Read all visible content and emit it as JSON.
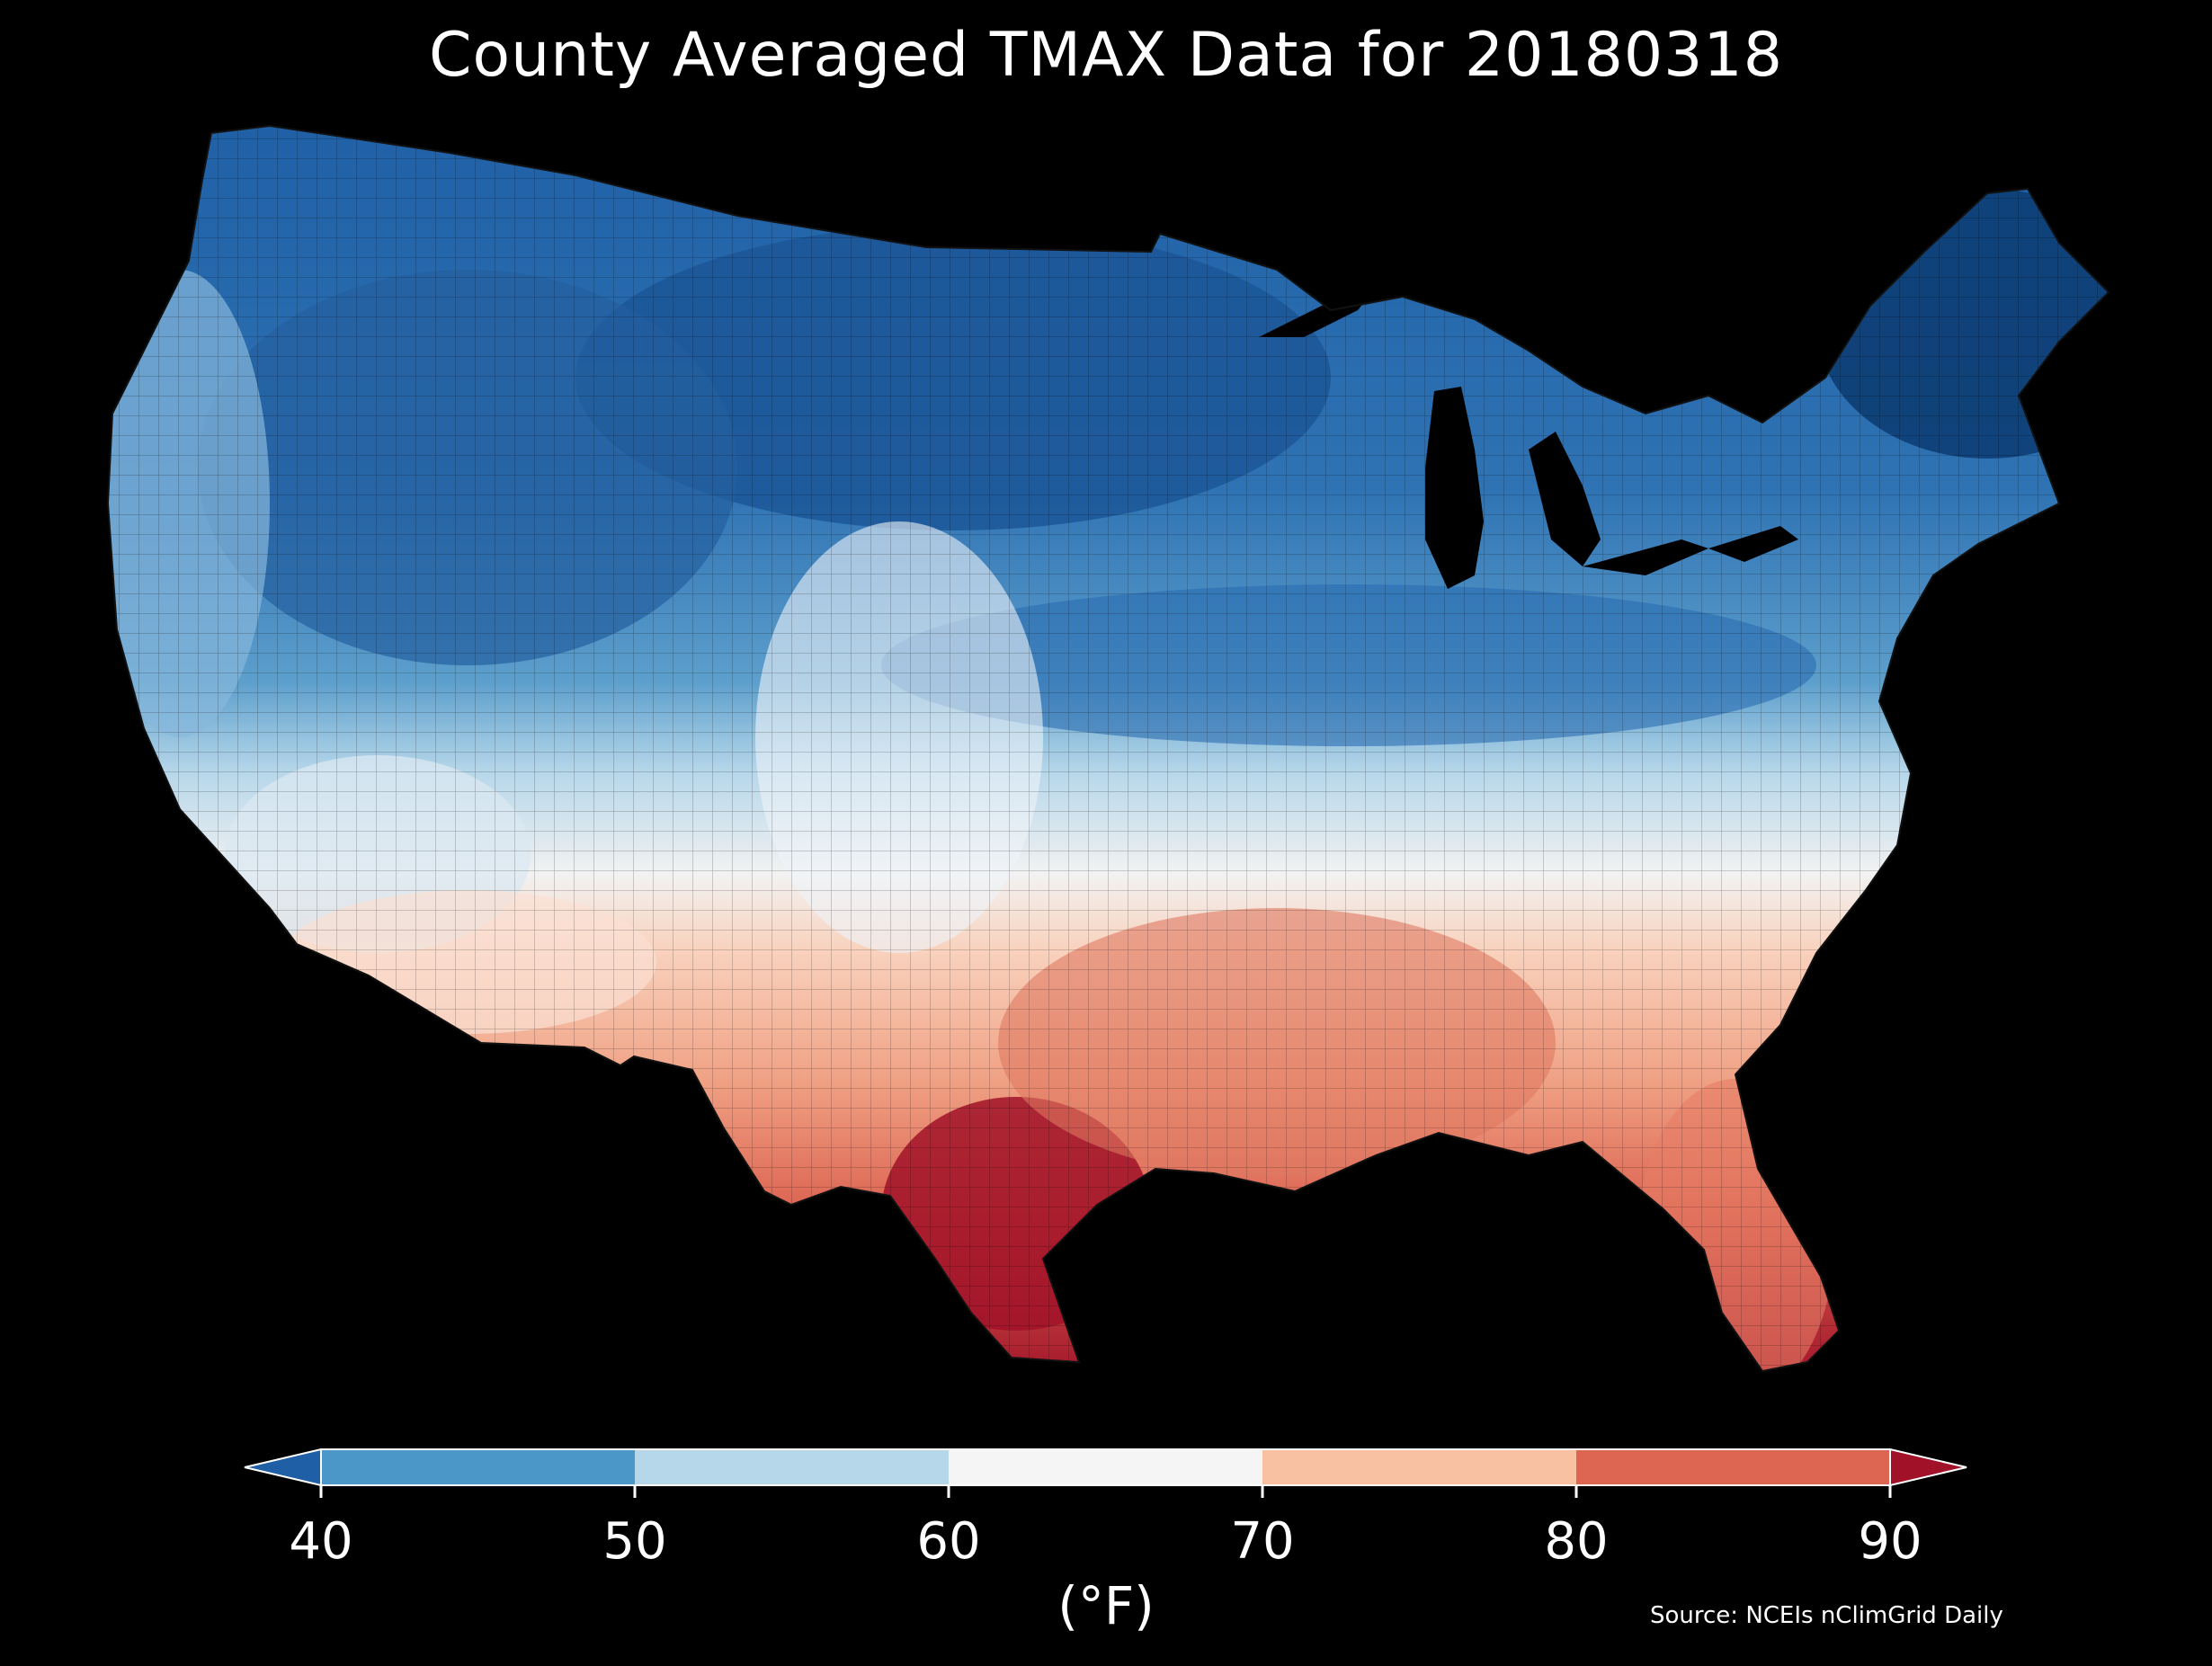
{
  "title": "County Averaged TMAX Data for 20180318",
  "colorbar": {
    "ticks": [
      "40",
      "50",
      "60",
      "70",
      "80",
      "90"
    ],
    "unit": "(°F)",
    "bins": [
      {
        "range": "<40",
        "color": "#1f5fa6"
      },
      {
        "range": "40-50",
        "color": "#4b97c8"
      },
      {
        "range": "50-60",
        "color": "#b6d7ea"
      },
      {
        "range": "60-70",
        "color": "#f5f5f5"
      },
      {
        "range": "70-80",
        "color": "#f8c1a2"
      },
      {
        "range": "80-90",
        "color": "#dd6653"
      },
      {
        "range": ">90",
        "color": "#a11228"
      }
    ]
  },
  "source": "Source: NCEIs nClimGrid Daily"
}
